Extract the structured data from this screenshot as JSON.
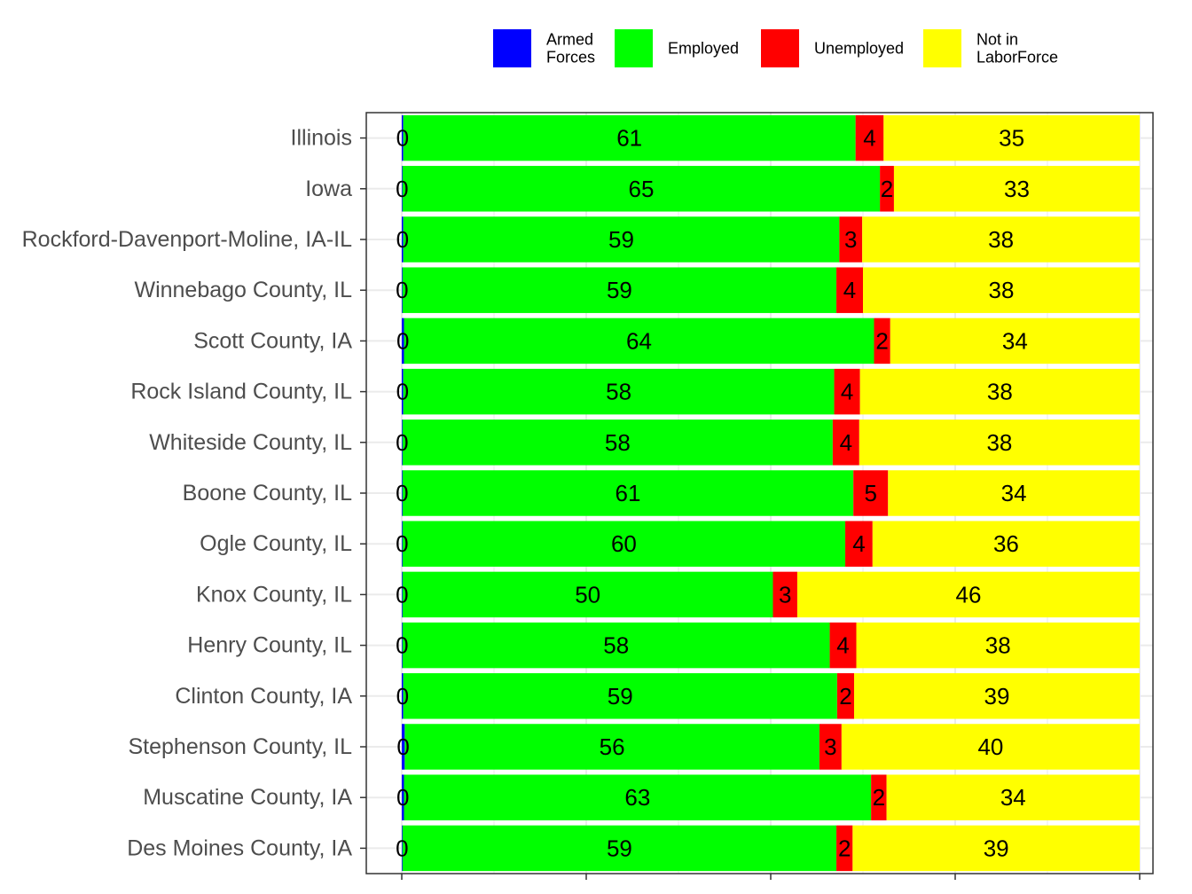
{
  "chart_data": {
    "type": "bar",
    "orientation": "horizontal",
    "stacked": true,
    "title": "",
    "xlabel": "",
    "ylabel": "",
    "xlim": [
      0,
      100
    ],
    "grid": true,
    "legend_position": "top",
    "categories": [
      "Illinois",
      "Iowa",
      "Rockford-Davenport-Moline, IA-IL",
      "Winnebago County, IL",
      "Scott County, IA",
      "Rock Island County, IL",
      "Whiteside County, IL",
      "Boone County, IL",
      "Ogle County, IL",
      "Knox County, IL",
      "Henry County, IL",
      "Clinton County, IA",
      "Stephenson County, IL",
      "Muscatine County, IA",
      "Des Moines County, IA"
    ],
    "series": [
      {
        "name": "Armed Forces",
        "legend_lines": [
          "Armed",
          "Forces"
        ],
        "color": "#0000ff",
        "values": [
          0.2,
          0.1,
          0.2,
          0.1,
          0.3,
          0.2,
          0.1,
          0.1,
          0.1,
          0.1,
          0.1,
          0.2,
          0.4,
          0.3,
          0.1
        ],
        "labels": [
          "0",
          "0",
          "0",
          "0",
          "0",
          "0",
          "0",
          "0",
          "0",
          "0",
          "0",
          "0",
          "0",
          "0",
          "0"
        ]
      },
      {
        "name": "Employed",
        "legend_lines": [
          "Employed"
        ],
        "color": "#00ff00",
        "values": [
          61.3,
          64.7,
          59.1,
          58.8,
          63.7,
          58.4,
          58.3,
          61.1,
          60.0,
          50.2,
          57.9,
          58.8,
          56.2,
          63.3,
          58.8
        ],
        "labels": [
          "61",
          "65",
          "59",
          "59",
          "64",
          "58",
          "58",
          "61",
          "60",
          "50",
          "58",
          "59",
          "56",
          "63",
          "59"
        ]
      },
      {
        "name": "Unemployed",
        "legend_lines": [
          "Unemployed"
        ],
        "color": "#ff0000",
        "values": [
          3.8,
          1.9,
          3.1,
          3.6,
          2.2,
          3.5,
          3.6,
          4.7,
          3.7,
          3.3,
          3.6,
          2.3,
          3.0,
          2.1,
          2.2
        ],
        "labels": [
          "4",
          "2",
          "3",
          "4",
          "2",
          "4",
          "4",
          "5",
          "4",
          "3",
          "4",
          "2",
          "3",
          "2",
          "2"
        ]
      },
      {
        "name": "Not in LaborForce",
        "legend_lines": [
          "Not in",
          "LaborForce"
        ],
        "color": "#ffff00",
        "values": [
          34.7,
          33.3,
          37.6,
          37.5,
          33.8,
          37.9,
          38.0,
          34.1,
          36.2,
          46.4,
          38.4,
          38.7,
          40.4,
          34.3,
          38.9
        ],
        "labels": [
          "35",
          "33",
          "38",
          "38",
          "34",
          "38",
          "38",
          "34",
          "36",
          "46",
          "38",
          "39",
          "40",
          "34",
          "39"
        ]
      }
    ]
  }
}
